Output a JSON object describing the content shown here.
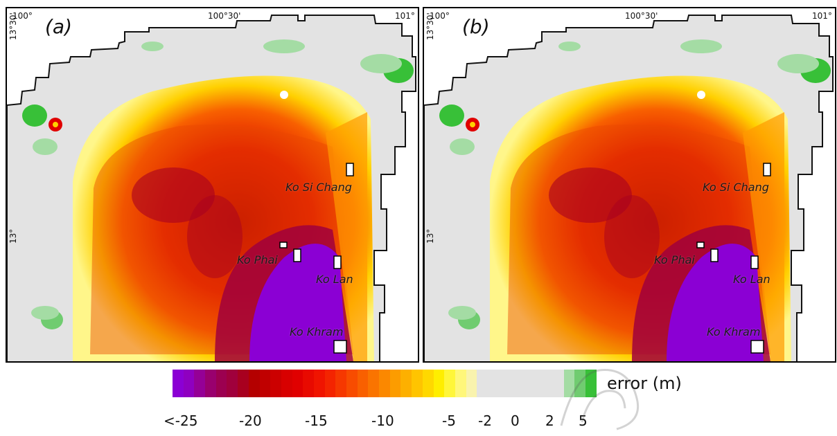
{
  "panels": [
    {
      "letter": "(a)",
      "lon_labels": [
        "100°",
        "100°30'",
        "101°"
      ],
      "lat_labels": [
        "13°30'",
        "13°"
      ],
      "islands": [
        "Ko Si Chang",
        "Ko Phai",
        "Ko Lan",
        "Ko Khram"
      ]
    },
    {
      "letter": "(b)",
      "lon_labels": [
        "100°",
        "100°30'",
        "101°"
      ],
      "lat_labels": [
        "13°30'",
        "13°"
      ],
      "islands": [
        "Ko Si Chang",
        "Ko Phai",
        "Ko Lan",
        "Ko Khram"
      ]
    }
  ],
  "legend": {
    "title": "error (m)",
    "tick_labels": [
      "<-25",
      "-20",
      "-15",
      "-10",
      "-5",
      "-2",
      "0",
      "2",
      "5"
    ],
    "colors": [
      "#8b00d4",
      "#8f00c0",
      "#950096",
      "#99006e",
      "#9c0050",
      "#a0003c",
      "#a8001f",
      "#b40000",
      "#c00000",
      "#cc0000",
      "#d80000",
      "#e00000",
      "#e80a00",
      "#f01400",
      "#f42400",
      "#f63800",
      "#f84c00",
      "#f96000",
      "#fa7400",
      "#fb8800",
      "#fc9c00",
      "#fdb000",
      "#ffc400",
      "#ffd800",
      "#ffee00",
      "#fff63a",
      "#fff77a",
      "#f9f3ae",
      "#e3e3e3",
      "#e3e3e3",
      "#e3e3e3",
      "#e3e3e3",
      "#e3e3e3",
      "#e3e3e3",
      "#e3e3e3",
      "#e3e3e3",
      "#a4dca4",
      "#70cc70",
      "#38c038"
    ]
  }
}
